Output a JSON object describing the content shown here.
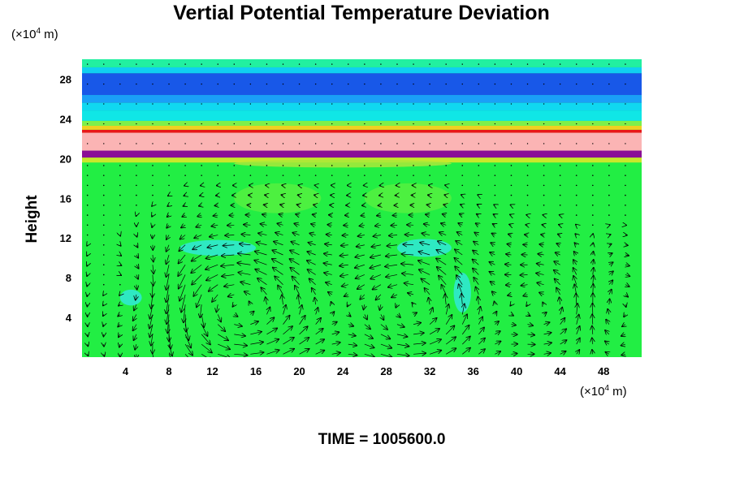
{
  "chart_data": {
    "type": "heatmap",
    "title": "Vertial Potential Temperature Deviation",
    "ylabel": "Height",
    "y_unit": {
      "prefix": "(×10",
      "exp": "4",
      "suffix": " m)"
    },
    "x_unit": {
      "prefix": "(×10",
      "exp": "4",
      "suffix": " m)"
    },
    "footer": "TIME = 1005600.0",
    "xlim": [
      0,
      51.5
    ],
    "ylim": [
      0,
      30
    ],
    "x_ticks": [
      "4",
      "8",
      "12",
      "16",
      "20",
      "24",
      "28",
      "32",
      "36",
      "40",
      "44",
      "48"
    ],
    "y_ticks": [
      "4",
      "8",
      "12",
      "16",
      "20",
      "24",
      "28"
    ],
    "background_color": "#22ee44",
    "layers": [
      {
        "y0": 0,
        "y1": 20.0,
        "color": "#22ee44"
      },
      {
        "y0": 19.6,
        "y1": 20.1,
        "color": "#c8e82a"
      },
      {
        "y0": 20.1,
        "y1": 20.8,
        "color": "#8a0f96"
      },
      {
        "y0": 20.8,
        "y1": 22.6,
        "color": "#fbb4b4"
      },
      {
        "y0": 22.6,
        "y1": 22.9,
        "color": "#e81818"
      },
      {
        "y0": 22.9,
        "y1": 23.3,
        "color": "#f0d020"
      },
      {
        "y0": 23.3,
        "y1": 23.8,
        "color": "#7ef04a"
      },
      {
        "y0": 23.8,
        "y1": 24.8,
        "color": "#10e6e6"
      },
      {
        "y0": 24.8,
        "y1": 25.6,
        "color": "#10d8f0"
      },
      {
        "y0": 25.6,
        "y1": 26.4,
        "color": "#1aa0f8"
      },
      {
        "y0": 26.4,
        "y1": 28.6,
        "color": "#1858e8"
      },
      {
        "y0": 28.6,
        "y1": 29.2,
        "color": "#10d0f0"
      },
      {
        "y0": 29.2,
        "y1": 30.0,
        "color": "#22f0a0"
      }
    ],
    "patches": [
      {
        "cx": 12.5,
        "cy": 11.0,
        "rx": 3.5,
        "ry": 0.8,
        "color": "#30e8d8"
      },
      {
        "cx": 31.5,
        "cy": 11.0,
        "rx": 2.5,
        "ry": 0.9,
        "color": "#30e8d8"
      },
      {
        "cx": 4.5,
        "cy": 6.0,
        "rx": 1.0,
        "ry": 0.8,
        "color": "#30e8d8"
      },
      {
        "cx": 35.0,
        "cy": 6.5,
        "rx": 0.8,
        "ry": 2.0,
        "color": "#30e8d8"
      },
      {
        "cx": 18.0,
        "cy": 16.0,
        "rx": 4.0,
        "ry": 1.5,
        "color": "#55f040"
      },
      {
        "cx": 30.0,
        "cy": 16.0,
        "rx": 4.0,
        "ry": 1.5,
        "color": "#55f040"
      },
      {
        "cx": 24.0,
        "cy": 19.5,
        "rx": 10.0,
        "ry": 0.4,
        "color": "#a8e83a"
      }
    ],
    "vortices": [
      {
        "cx": 14.5,
        "cy": 5.0,
        "rx": 9.0,
        "ry": 6.5,
        "sense": 1,
        "strength": 1.0
      },
      {
        "cx": 30.5,
        "cy": 5.0,
        "rx": 7.0,
        "ry": 6.5,
        "sense": 1,
        "strength": 0.9
      },
      {
        "cx": 42.5,
        "cy": 5.0,
        "rx": 4.5,
        "ry": 5.0,
        "sense": 1,
        "strength": 0.55
      },
      {
        "cx": 6.0,
        "cy": 6.0,
        "rx": 3.5,
        "ry": 5.0,
        "sense": -1,
        "strength": 0.5
      },
      {
        "cx": 49.0,
        "cy": 5.0,
        "rx": 3.0,
        "ry": 5.0,
        "sense": -1,
        "strength": 0.4
      }
    ],
    "vector_grid": {
      "dx": 1.5,
      "dy": 1.0,
      "x0": 0.5,
      "y0": 0.3,
      "ytop": 20.0,
      "upper_dot_dy": 2.0
    },
    "grid": false,
    "legend": "none"
  }
}
